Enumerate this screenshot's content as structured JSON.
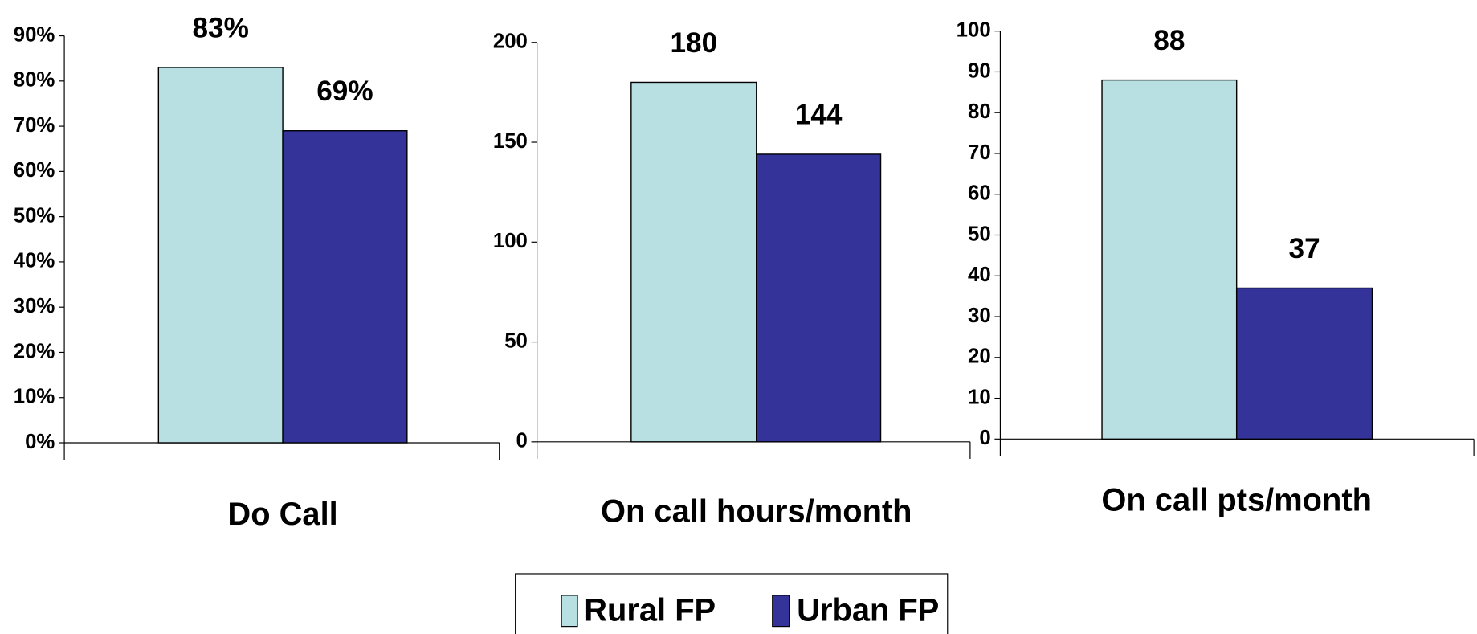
{
  "chart_data": [
    {
      "type": "bar",
      "categories": [
        "Do Call"
      ],
      "series": [
        {
          "name": "Rural FP",
          "color": "#b8e0e2",
          "values": [
            83
          ],
          "value_labels": [
            "83%"
          ]
        },
        {
          "name": "Urban FP",
          "color": "#333399",
          "values": [
            69
          ],
          "value_labels": [
            "69%"
          ]
        }
      ],
      "ylim": [
        0,
        90
      ],
      "yticks": [
        {
          "value": 0,
          "label": "0%"
        },
        {
          "value": 10,
          "label": "10%"
        },
        {
          "value": 20,
          "label": "20%"
        },
        {
          "value": 30,
          "label": "30%"
        },
        {
          "value": 40,
          "label": "40%"
        },
        {
          "value": 50,
          "label": "50%"
        },
        {
          "value": 60,
          "label": "60%"
        },
        {
          "value": 70,
          "label": "70%"
        },
        {
          "value": 80,
          "label": "80%"
        },
        {
          "value": 90,
          "label": "90%"
        }
      ],
      "legend": "bottom"
    },
    {
      "type": "bar",
      "categories": [
        "On call hours/month"
      ],
      "series": [
        {
          "name": "Rural FP",
          "color": "#b8e0e2",
          "values": [
            180
          ]
        },
        {
          "name": "Urban FP",
          "color": "#333399",
          "values": [
            144
          ]
        }
      ],
      "ylim": [
        0,
        200
      ],
      "yticks": [
        0,
        50,
        100,
        150,
        200
      ]
    },
    {
      "type": "bar",
      "categories": [
        "On call pts/month"
      ],
      "series": [
        {
          "name": "Rural FP",
          "color": "#b8e0e2",
          "values": [
            88
          ]
        },
        {
          "name": "Urban FP",
          "color": "#333399",
          "values": [
            37
          ]
        }
      ],
      "ylim": [
        0,
        100
      ],
      "yticks": [
        0,
        10,
        20,
        30,
        40,
        50,
        60,
        70,
        80,
        90,
        100
      ]
    }
  ]
}
